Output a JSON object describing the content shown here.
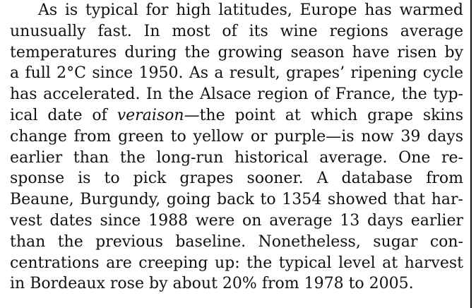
{
  "article": {
    "lines": [
      "As is typical for high latitudes, Europe has warmed",
      "unusually fast. In most of its wine regions average",
      "temperatures during the growing season have risen by",
      "a full 2°C since 1950. As a result, grapes’ ripening cycle",
      "has accelerated. In the Alsace region of France, the typ-",
      {
        "before": "ical date of ",
        "italic": "veraison",
        "after": "—the point at which grape skins"
      },
      "change from green to yellow or purple—is now 39 days",
      "earlier than the long-run historical average. One re-",
      "sponse is to pick grapes sooner. A database from",
      "Beaune, Burgundy, going back to 1354 showed that har-",
      "vest dates since 1988 were on average 13 days earlier",
      "than the previous baseline. Nonetheless, sugar con-",
      "centrations are creeping up: the typical level at harvest",
      "in Bordeaux rose by about 20% from 1978 to 2005."
    ]
  }
}
